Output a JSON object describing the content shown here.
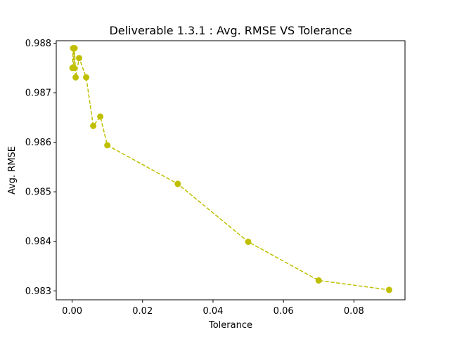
{
  "chart_data": {
    "type": "line",
    "title": "Deliverable 1.3.1 : Avg. RMSE VS Tolerance",
    "xlabel": "Tolerance",
    "ylabel": "Avg. RMSE",
    "xlim": [
      -0.0045,
      0.0945
    ],
    "ylim": [
      0.98282,
      0.98805
    ],
    "xticks": [
      0.0,
      0.02,
      0.04,
      0.06,
      0.08
    ],
    "xtick_labels": [
      "0.00",
      "0.02",
      "0.04",
      "0.06",
      "0.08"
    ],
    "yticks": [
      0.983,
      0.984,
      0.985,
      0.986,
      0.987,
      0.988
    ],
    "ytick_labels": [
      "0.983",
      "0.984",
      "0.985",
      "0.986",
      "0.987",
      "0.988"
    ],
    "grid": false,
    "legend": "none",
    "series": [
      {
        "color": "#bfbf00",
        "line_style": "dashed",
        "marker": "circle",
        "x": [
          0.0001,
          0.0003,
          0.0005,
          0.0007,
          0.001,
          0.002,
          0.004,
          0.006,
          0.008,
          0.01,
          0.03,
          0.05,
          0.07,
          0.09
        ],
        "y": [
          0.9875,
          0.9879,
          0.9875,
          0.9879,
          0.98731,
          0.9877,
          0.98731,
          0.98633,
          0.98652,
          0.98594,
          0.98516,
          0.98399,
          0.98321,
          0.98302
        ]
      }
    ]
  }
}
